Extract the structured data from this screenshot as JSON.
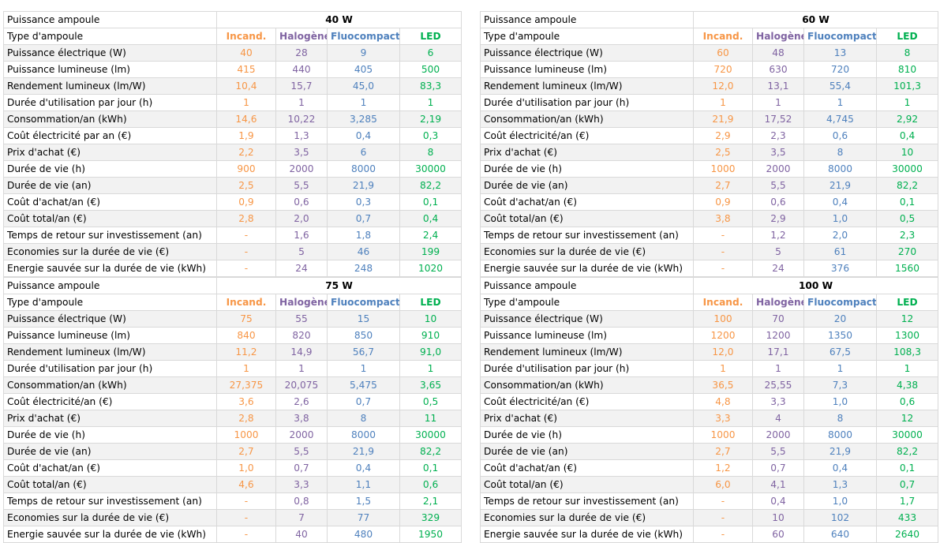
{
  "colors": {
    "incand": "#f79646",
    "halogen": "#8064a2",
    "fluo": "#4f81bd",
    "led": "#00b050",
    "shade": "#f2f2f2"
  },
  "tables": [
    {
      "power_label": "Puissance ampoule",
      "power": "40 W",
      "type_label": "Type d'ampoule",
      "types": [
        "Incand.",
        "Halogène",
        "Fluocompacte",
        "LED"
      ],
      "rows": [
        {
          "label": "Puissance électrique (W)",
          "values": [
            "40",
            "28",
            "9",
            "6"
          ]
        },
        {
          "label": "Puissance lumineuse (lm)",
          "values": [
            "415",
            "440",
            "405",
            "500"
          ]
        },
        {
          "label": "Rendement lumineux (lm/W)",
          "values": [
            "10,4",
            "15,7",
            "45,0",
            "83,3"
          ]
        },
        {
          "label": "Durée d'utilisation par jour (h)",
          "values": [
            "1",
            "1",
            "1",
            "1"
          ]
        },
        {
          "label": "Consommation/an (kWh)",
          "values": [
            "14,6",
            "10,22",
            "3,285",
            "2,19"
          ]
        },
        {
          "label": "Coût électricité par an (€)",
          "values": [
            "1,9",
            "1,3",
            "0,4",
            "0,3"
          ]
        },
        {
          "label": "Prix d'achat (€)",
          "values": [
            "2,2",
            "3,5",
            "6",
            "8"
          ]
        },
        {
          "label": "Durée de vie (h)",
          "values": [
            "900",
            "2000",
            "8000",
            "30000"
          ]
        },
        {
          "label": "Durée de vie (an)",
          "values": [
            "2,5",
            "5,5",
            "21,9",
            "82,2"
          ]
        },
        {
          "label": "Coût d'achat/an (€)",
          "values": [
            "0,9",
            "0,6",
            "0,3",
            "0,1"
          ]
        },
        {
          "label": "Coût total/an (€)",
          "values": [
            "2,8",
            "2,0",
            "0,7",
            "0,4"
          ]
        },
        {
          "label": "Temps de retour sur investissement (an)",
          "values": [
            "-",
            "1,6",
            "1,8",
            "2,4"
          ]
        },
        {
          "label": "Economies sur la durée de vie (€)",
          "values": [
            "-",
            "5",
            "46",
            "199"
          ]
        },
        {
          "label": "Energie sauvée sur la durée de vie (kWh)",
          "values": [
            "-",
            "24",
            "248",
            "1020"
          ]
        }
      ]
    },
    {
      "power_label": "Puissance ampoule",
      "power": "60 W",
      "type_label": "Type d'ampoule",
      "types": [
        "Incand.",
        "Halogène",
        "Fluocompacte",
        "LED"
      ],
      "rows": [
        {
          "label": "Puissance électrique (W)",
          "values": [
            "60",
            "48",
            "13",
            "8"
          ]
        },
        {
          "label": "Puissance lumineuse (lm)",
          "values": [
            "720",
            "630",
            "720",
            "810"
          ]
        },
        {
          "label": "Rendement lumineux (lm/W)",
          "values": [
            "12,0",
            "13,1",
            "55,4",
            "101,3"
          ]
        },
        {
          "label": "Durée d'utilisation par jour (h)",
          "values": [
            "1",
            "1",
            "1",
            "1"
          ]
        },
        {
          "label": "Consommation/an (kWh)",
          "values": [
            "21,9",
            "17,52",
            "4,745",
            "2,92"
          ]
        },
        {
          "label": "Coût électricité/an (€)",
          "values": [
            "2,9",
            "2,3",
            "0,6",
            "0,4"
          ]
        },
        {
          "label": "Prix d'achat (€)",
          "values": [
            "2,5",
            "3,5",
            "8",
            "10"
          ]
        },
        {
          "label": "Durée de vie (h)",
          "values": [
            "1000",
            "2000",
            "8000",
            "30000"
          ]
        },
        {
          "label": "Durée de vie (an)",
          "values": [
            "2,7",
            "5,5",
            "21,9",
            "82,2"
          ]
        },
        {
          "label": "Coût d'achat/an (€)",
          "values": [
            "0,9",
            "0,6",
            "0,4",
            "0,1"
          ]
        },
        {
          "label": "Coût total/an (€)",
          "values": [
            "3,8",
            "2,9",
            "1,0",
            "0,5"
          ]
        },
        {
          "label": "Temps de retour sur investissement (an)",
          "values": [
            "-",
            "1,2",
            "2,0",
            "2,3"
          ]
        },
        {
          "label": "Economies sur la durée de vie (€)",
          "values": [
            "-",
            "5",
            "61",
            "270"
          ]
        },
        {
          "label": "Energie sauvée sur la durée de vie (kWh)",
          "values": [
            "-",
            "24",
            "376",
            "1560"
          ]
        }
      ]
    },
    {
      "power_label": "Puissance ampoule",
      "power": "75 W",
      "type_label": "Type d'ampoule",
      "types": [
        "Incand.",
        "Halogène",
        "Fluocompacte",
        "LED"
      ],
      "rows": [
        {
          "label": "Puissance électrique (W)",
          "values": [
            "75",
            "55",
            "15",
            "10"
          ]
        },
        {
          "label": "Puissance lumineuse (lm)",
          "values": [
            "840",
            "820",
            "850",
            "910"
          ]
        },
        {
          "label": "Rendement lumineux (lm/W)",
          "values": [
            "11,2",
            "14,9",
            "56,7",
            "91,0"
          ]
        },
        {
          "label": "Durée d'utilisation par jour (h)",
          "values": [
            "1",
            "1",
            "1",
            "1"
          ]
        },
        {
          "label": "Consommation/an (kWh)",
          "values": [
            "27,375",
            "20,075",
            "5,475",
            "3,65"
          ]
        },
        {
          "label": "Coût électricité/an (€)",
          "values": [
            "3,6",
            "2,6",
            "0,7",
            "0,5"
          ]
        },
        {
          "label": "Prix d'achat (€)",
          "values": [
            "2,8",
            "3,8",
            "8",
            "11"
          ]
        },
        {
          "label": "Durée de vie (h)",
          "values": [
            "1000",
            "2000",
            "8000",
            "30000"
          ]
        },
        {
          "label": "Durée de vie (an)",
          "values": [
            "2,7",
            "5,5",
            "21,9",
            "82,2"
          ]
        },
        {
          "label": "Coût d'achat/an (€)",
          "values": [
            "1,0",
            "0,7",
            "0,4",
            "0,1"
          ]
        },
        {
          "label": "Coût total/an (€)",
          "values": [
            "4,6",
            "3,3",
            "1,1",
            "0,6"
          ]
        },
        {
          "label": "Temps de retour sur investissement (an)",
          "values": [
            "-",
            "0,8",
            "1,5",
            "2,1"
          ]
        },
        {
          "label": "Economies sur la durée de vie (€)",
          "values": [
            "-",
            "7",
            "77",
            "329"
          ]
        },
        {
          "label": "Energie sauvée sur la durée de vie (kWh)",
          "values": [
            "-",
            "40",
            "480",
            "1950"
          ]
        }
      ]
    },
    {
      "power_label": "Puissance ampoule",
      "power": "100 W",
      "type_label": "Type d'ampoule",
      "types": [
        "Incand.",
        "Halogène",
        "Fluocompacte",
        "LED"
      ],
      "rows": [
        {
          "label": "Puissance électrique (W)",
          "values": [
            "100",
            "70",
            "20",
            "12"
          ]
        },
        {
          "label": "Puissance lumineuse (lm)",
          "values": [
            "1200",
            "1200",
            "1350",
            "1300"
          ]
        },
        {
          "label": "Rendement lumineux (lm/W)",
          "values": [
            "12,0",
            "17,1",
            "67,5",
            "108,3"
          ]
        },
        {
          "label": "Durée d'utilisation par jour (h)",
          "values": [
            "1",
            "1",
            "1",
            "1"
          ]
        },
        {
          "label": "Consommation/an (kWh)",
          "values": [
            "36,5",
            "25,55",
            "7,3",
            "4,38"
          ]
        },
        {
          "label": "Coût électricité/an (€)",
          "values": [
            "4,8",
            "3,3",
            "1,0",
            "0,6"
          ]
        },
        {
          "label": "Prix d'achat (€)",
          "values": [
            "3,3",
            "4",
            "8",
            "12"
          ]
        },
        {
          "label": "Durée de vie (h)",
          "values": [
            "1000",
            "2000",
            "8000",
            "30000"
          ]
        },
        {
          "label": "Durée de vie (an)",
          "values": [
            "2,7",
            "5,5",
            "21,9",
            "82,2"
          ]
        },
        {
          "label": "Coût d'achat/an (€)",
          "values": [
            "1,2",
            "0,7",
            "0,4",
            "0,1"
          ]
        },
        {
          "label": "Coût total/an (€)",
          "values": [
            "6,0",
            "4,1",
            "1,3",
            "0,7"
          ]
        },
        {
          "label": "Temps de retour sur investissement (an)",
          "values": [
            "-",
            "0,4",
            "1,0",
            "1,7"
          ]
        },
        {
          "label": "Economies sur la durée de vie (€)",
          "values": [
            "-",
            "10",
            "102",
            "433"
          ]
        },
        {
          "label": "Energie sauvée sur la durée de vie (kWh)",
          "values": [
            "-",
            "60",
            "640",
            "2640"
          ]
        }
      ]
    }
  ]
}
